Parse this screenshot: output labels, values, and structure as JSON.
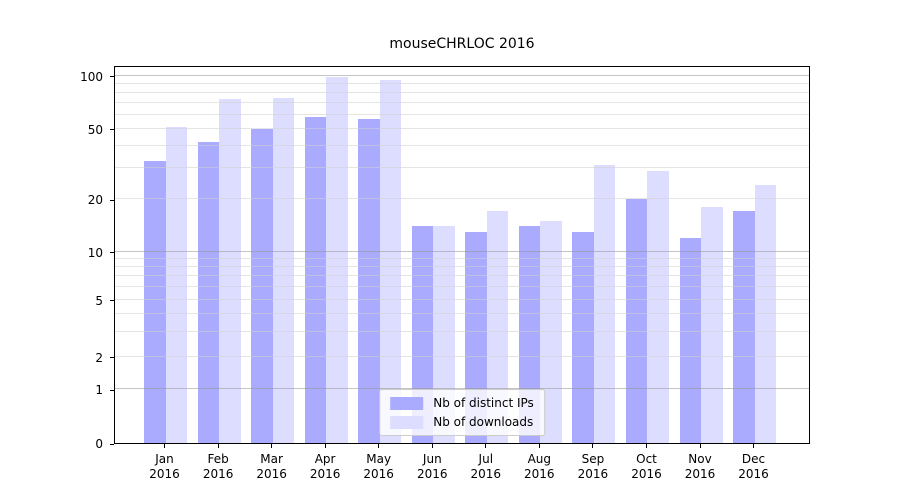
{
  "title": "mouseCHRLOC 2016",
  "chart_data": {
    "type": "bar",
    "title": "mouseCHRLOC 2016",
    "categories": [
      "Jan 2016",
      "Feb 2016",
      "Mar 2016",
      "Apr 2016",
      "May 2016",
      "Jun 2016",
      "Jul 2016",
      "Aug 2016",
      "Sep 2016",
      "Oct 2016",
      "Nov 2016",
      "Dec 2016"
    ],
    "series": [
      {
        "name": "Nb of distinct IPs",
        "color": "#aaaaff",
        "values": [
          33,
          42,
          50,
          58,
          57,
          14,
          13,
          14,
          13,
          20,
          12,
          17
        ]
      },
      {
        "name": "Nb of downloads",
        "color": "#ddddff",
        "values": [
          51,
          74,
          75,
          98,
          94,
          14,
          17,
          15,
          31,
          29,
          18,
          24
        ]
      }
    ],
    "xlabel": "",
    "ylabel": "",
    "yscale": "symlog",
    "yticks": [
      0,
      1,
      2,
      5,
      10,
      20,
      50,
      100
    ],
    "ylim": [
      0,
      104
    ],
    "grid": "horizontal, major at decades + faint log minors",
    "legend_position": "lower center"
  },
  "colors": {
    "background": "#ffffff",
    "axis": "#000000",
    "grid_major": "#c9c9c9",
    "grid_minor": "#e9e9e9"
  }
}
